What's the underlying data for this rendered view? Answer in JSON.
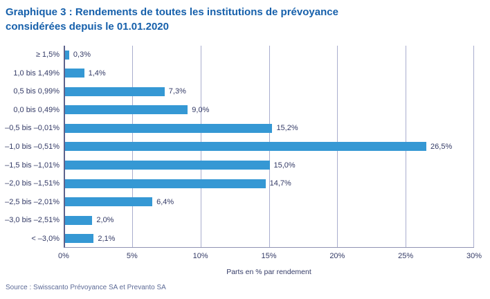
{
  "title": {
    "lines": [
      "Graphique 3 : Rendements de toutes les institutions de prévoyance",
      "considérées depuis le 01.01.2020"
    ]
  },
  "source": "Source : Swisscanto Prévoyance SA et Prevanto SA",
  "chart_data": {
    "type": "bar",
    "orientation": "horizontal",
    "title": "Graphique 3 : Rendements de toutes les institutions de prévoyance considérées depuis le 01.01.2020",
    "categories": [
      "≥ 1,5%",
      "1,0 bis 1,49%",
      "0,5 bis 0,99%",
      "0,0 bis 0,49%",
      "–0,5 bis –0,01%",
      "–1,0 bis –0,51%",
      "–1,5 bis –1,01%",
      "–2,0 bis –1,51%",
      "–2,5 bis –2,01%",
      "–3,0 bis –2,51%",
      "< –3,0%"
    ],
    "values": [
      0.3,
      1.4,
      7.3,
      9.0,
      15.2,
      26.5,
      15.0,
      14.7,
      6.4,
      2.0,
      2.1
    ],
    "value_labels": [
      "0,3%",
      "1,4%",
      "7,3%",
      "9,0%",
      "15,2%",
      "26,5%",
      "15,0%",
      "14,7%",
      "6,4%",
      "2,0%",
      "2,1%"
    ],
    "xlabel": "Parts en % par rendement",
    "ylabel": "",
    "xlim": [
      0,
      30
    ],
    "xtick_values": [
      0,
      5,
      10,
      15,
      20,
      25,
      30
    ],
    "xtick_labels": [
      "0%",
      "5%",
      "10%",
      "15%",
      "20%",
      "25%",
      "30%"
    ],
    "grid": "vertical",
    "legend": "none",
    "colors": {
      "bar": "#3598d4",
      "gridline": "#a9adce",
      "axis": "#5d628c",
      "title_text": "#1660ab",
      "label_text": "#333a66",
      "source_text": "#5c6a96"
    }
  }
}
